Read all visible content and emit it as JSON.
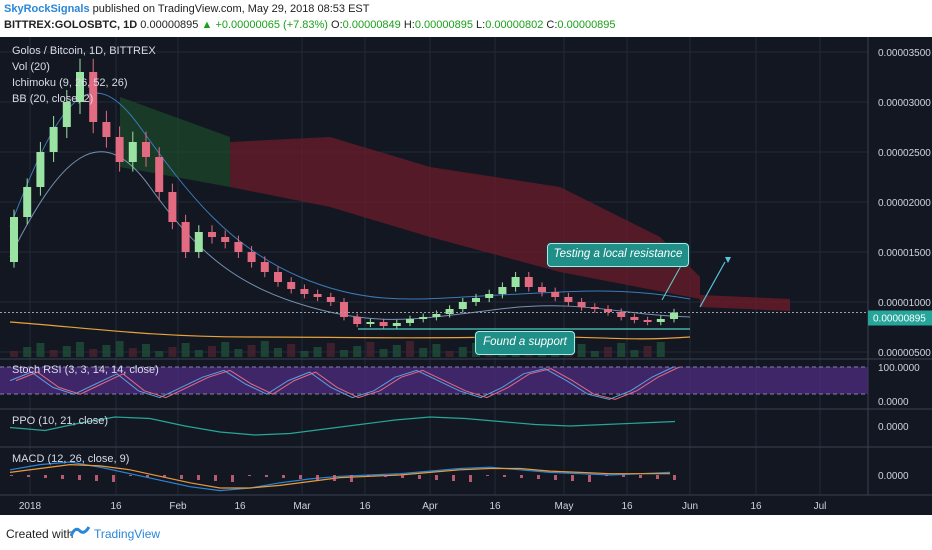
{
  "header": {
    "author": "SkyRockSignals",
    "published_text": "published on TradingView.com, May 29, 2018 08:53 EST",
    "symbol": "BITTREX:GOLOSBTC, 1D",
    "last_price": "0.00000895",
    "change_arrow": "▲",
    "change": "+0.00000065 (+7.83%)",
    "o_label": "O:",
    "o_value": "0.00000849",
    "h_label": "H:",
    "h_value": "0.00000895",
    "l_label": "L:",
    "l_value": "0.00000802",
    "c_label": "C:",
    "c_value": "0.00000895"
  },
  "legends": {
    "main": "Golos / Bitcoin, 1D, BITTREX",
    "vol": "Vol (20)",
    "ichimoku": "Ichimoku (9, 26, 52, 26)",
    "bb": "BB (20, close, 2)",
    "stoch": "Stoch RSI (3, 3, 14, 14, close)",
    "ppo": "PPO (10, 21, close)",
    "macd": "MACD (12, 26, close, 9)"
  },
  "annotations": {
    "resistance": "Testing a local resistance",
    "support": "Found a support"
  },
  "price_tag": "0.00000895",
  "footer": {
    "created": "Created with",
    "brand": "TradingView"
  },
  "colors": {
    "background": "#131722",
    "up_candle": "#9be3a2",
    "down_candle": "#e26b82",
    "callout": "#1f8f88",
    "stoch_band": "#4b2a7a",
    "price_tag": "#26a69a",
    "accent_blue": "#2a86d8"
  },
  "chart_data": [
    {
      "type": "candlestick",
      "title": "Golos / Bitcoin, 1D, BITTREX",
      "x_ticks": [
        "2018",
        "16",
        "Feb",
        "16",
        "Mar",
        "16",
        "Apr",
        "16",
        "May",
        "16",
        "Jun",
        "16",
        "Jul"
      ],
      "y_ticks": [
        "0.00003500",
        "0.00003000",
        "0.00002500",
        "0.00002000",
        "0.00001500",
        "0.00001000",
        "0.00000500"
      ],
      "ylim": [
        4.5e-06,
        3.65e-05
      ],
      "series": [
        {
          "name": "GOLOSBTC",
          "points": [
            [
              "Dec 28",
              1.4e-05,
              1.85e-05
            ],
            [
              "Jan 1",
              1.85e-05,
              2.15e-05
            ],
            [
              "Jan 4",
              2.15e-05,
              2.5e-05
            ],
            [
              "Jan 7",
              2.5e-05,
              2.75e-05
            ],
            [
              "Jan 10",
              2.75e-05,
              3e-05
            ],
            [
              "Jan 13",
              3e-05,
              3.3e-05
            ],
            [
              "Jan 16",
              3.3e-05,
              2.8e-05
            ],
            [
              "Jan 19",
              2.8e-05,
              2.65e-05
            ],
            [
              "Jan 22",
              2.65e-05,
              2.4e-05
            ],
            [
              "Jan 25",
              2.4e-05,
              2.6e-05
            ],
            [
              "Jan 28",
              2.6e-05,
              2.45e-05
            ],
            [
              "Jan 31",
              2.45e-05,
              2.1e-05
            ],
            [
              "Feb 3",
              2.1e-05,
              1.8e-05
            ],
            [
              "Feb 6",
              1.8e-05,
              1.5e-05
            ],
            [
              "Feb 9",
              1.5e-05,
              1.7e-05
            ],
            [
              "Feb 12",
              1.7e-05,
              1.65e-05
            ],
            [
              "Feb 15",
              1.65e-05,
              1.6e-05
            ],
            [
              "Feb 18",
              1.6e-05,
              1.5e-05
            ],
            [
              "Feb 21",
              1.5e-05,
              1.4e-05
            ],
            [
              "Feb 24",
              1.4e-05,
              1.3e-05
            ],
            [
              "Feb 27",
              1.3e-05,
              1.2e-05
            ],
            [
              "Mar 2",
              1.2e-05,
              1.13e-05
            ],
            [
              "Mar 5",
              1.13e-05,
              1.08e-05
            ],
            [
              "Mar 8",
              1.08e-05,
              1.05e-05
            ],
            [
              "Mar 11",
              1.05e-05,
              1e-05
            ],
            [
              "Mar 14",
              1e-05,
              8.5e-06
            ],
            [
              "Mar 17",
              8.5e-06,
              7.8e-06
            ],
            [
              "Mar 20",
              7.8e-06,
              8e-06
            ],
            [
              "Mar 23",
              8e-06,
              7.6e-06
            ],
            [
              "Mar 26",
              7.6e-06,
              7.9e-06
            ],
            [
              "Mar 29",
              7.9e-06,
              8.3e-06
            ],
            [
              "Apr 1",
              8.3e-06,
              8.5e-06
            ],
            [
              "Apr 4",
              8.5e-06,
              8.8e-06
            ],
            [
              "Apr 7",
              8.8e-06,
              9.3e-06
            ],
            [
              "Apr 10",
              9.3e-06,
              1e-05
            ],
            [
              "Apr 13",
              1e-05,
              1.04e-05
            ],
            [
              "Apr 16",
              1.04e-05,
              1.08e-05
            ],
            [
              "Apr 19",
              1.08e-05,
              1.15e-05
            ],
            [
              "Apr 22",
              1.15e-05,
              1.25e-05
            ],
            [
              "Apr 25",
              1.25e-05,
              1.15e-05
            ],
            [
              "Apr 28",
              1.15e-05,
              1.1e-05
            ],
            [
              "May 1",
              1.1e-05,
              1.05e-05
            ],
            [
              "May 4",
              1.05e-05,
              1e-05
            ],
            [
              "May 7",
              1e-05,
              9.5e-06
            ],
            [
              "May 10",
              9.5e-06,
              9.3e-06
            ],
            [
              "May 13",
              9.3e-06,
              9e-06
            ],
            [
              "May 16",
              9e-06,
              8.5e-06
            ],
            [
              "May 19",
              8.5e-06,
              8.2e-06
            ],
            [
              "May 22",
              8.2e-06,
              8e-06
            ],
            [
              "May 25",
              8e-06,
              8.3e-06
            ],
            [
              "May 28",
              8.3e-06,
              8.95e-06
            ]
          ]
        }
      ]
    },
    {
      "type": "line",
      "title": "Stoch RSI (3, 3, 14, 14, close)",
      "y_ticks": [
        "100.0000",
        "0.0000"
      ],
      "ylim": [
        0,
        100
      ],
      "series": [
        {
          "name": "K",
          "values": [
            60,
            85,
            40,
            20,
            50,
            80,
            30,
            10,
            40,
            70,
            90,
            50,
            20,
            60,
            85,
            40,
            10,
            30,
            70,
            90,
            60,
            30,
            10,
            40,
            80,
            95,
            60,
            20,
            5,
            30,
            70,
            100
          ]
        }
      ]
    },
    {
      "type": "line",
      "title": "PPO (10, 21, close)",
      "y_ticks": [
        "0.0000"
      ],
      "series": [
        {
          "name": "PPO",
          "values": [
            -1,
            -3,
            2,
            6,
            5,
            0,
            -4,
            -6,
            -5,
            -2,
            1,
            4,
            6,
            5,
            3,
            1,
            0,
            1,
            2,
            3
          ]
        }
      ]
    },
    {
      "type": "line",
      "title": "MACD (12, 26, close, 9)",
      "y_ticks": [
        "0.0000"
      ],
      "series": [
        {
          "name": "MACD",
          "values": [
            4,
            8,
            10,
            6,
            1,
            -4,
            -9,
            -12,
            -10,
            -6,
            -3,
            -1,
            0,
            1,
            3,
            5,
            6,
            4,
            2,
            1,
            0,
            1,
            2
          ]
        },
        {
          "name": "Signal",
          "values": [
            2,
            5,
            8,
            7,
            4,
            -1,
            -6,
            -10,
            -10,
            -8,
            -5,
            -2,
            -1,
            0,
            2,
            4,
            5,
            5,
            3,
            2,
            1,
            1,
            1
          ]
        }
      ]
    }
  ]
}
